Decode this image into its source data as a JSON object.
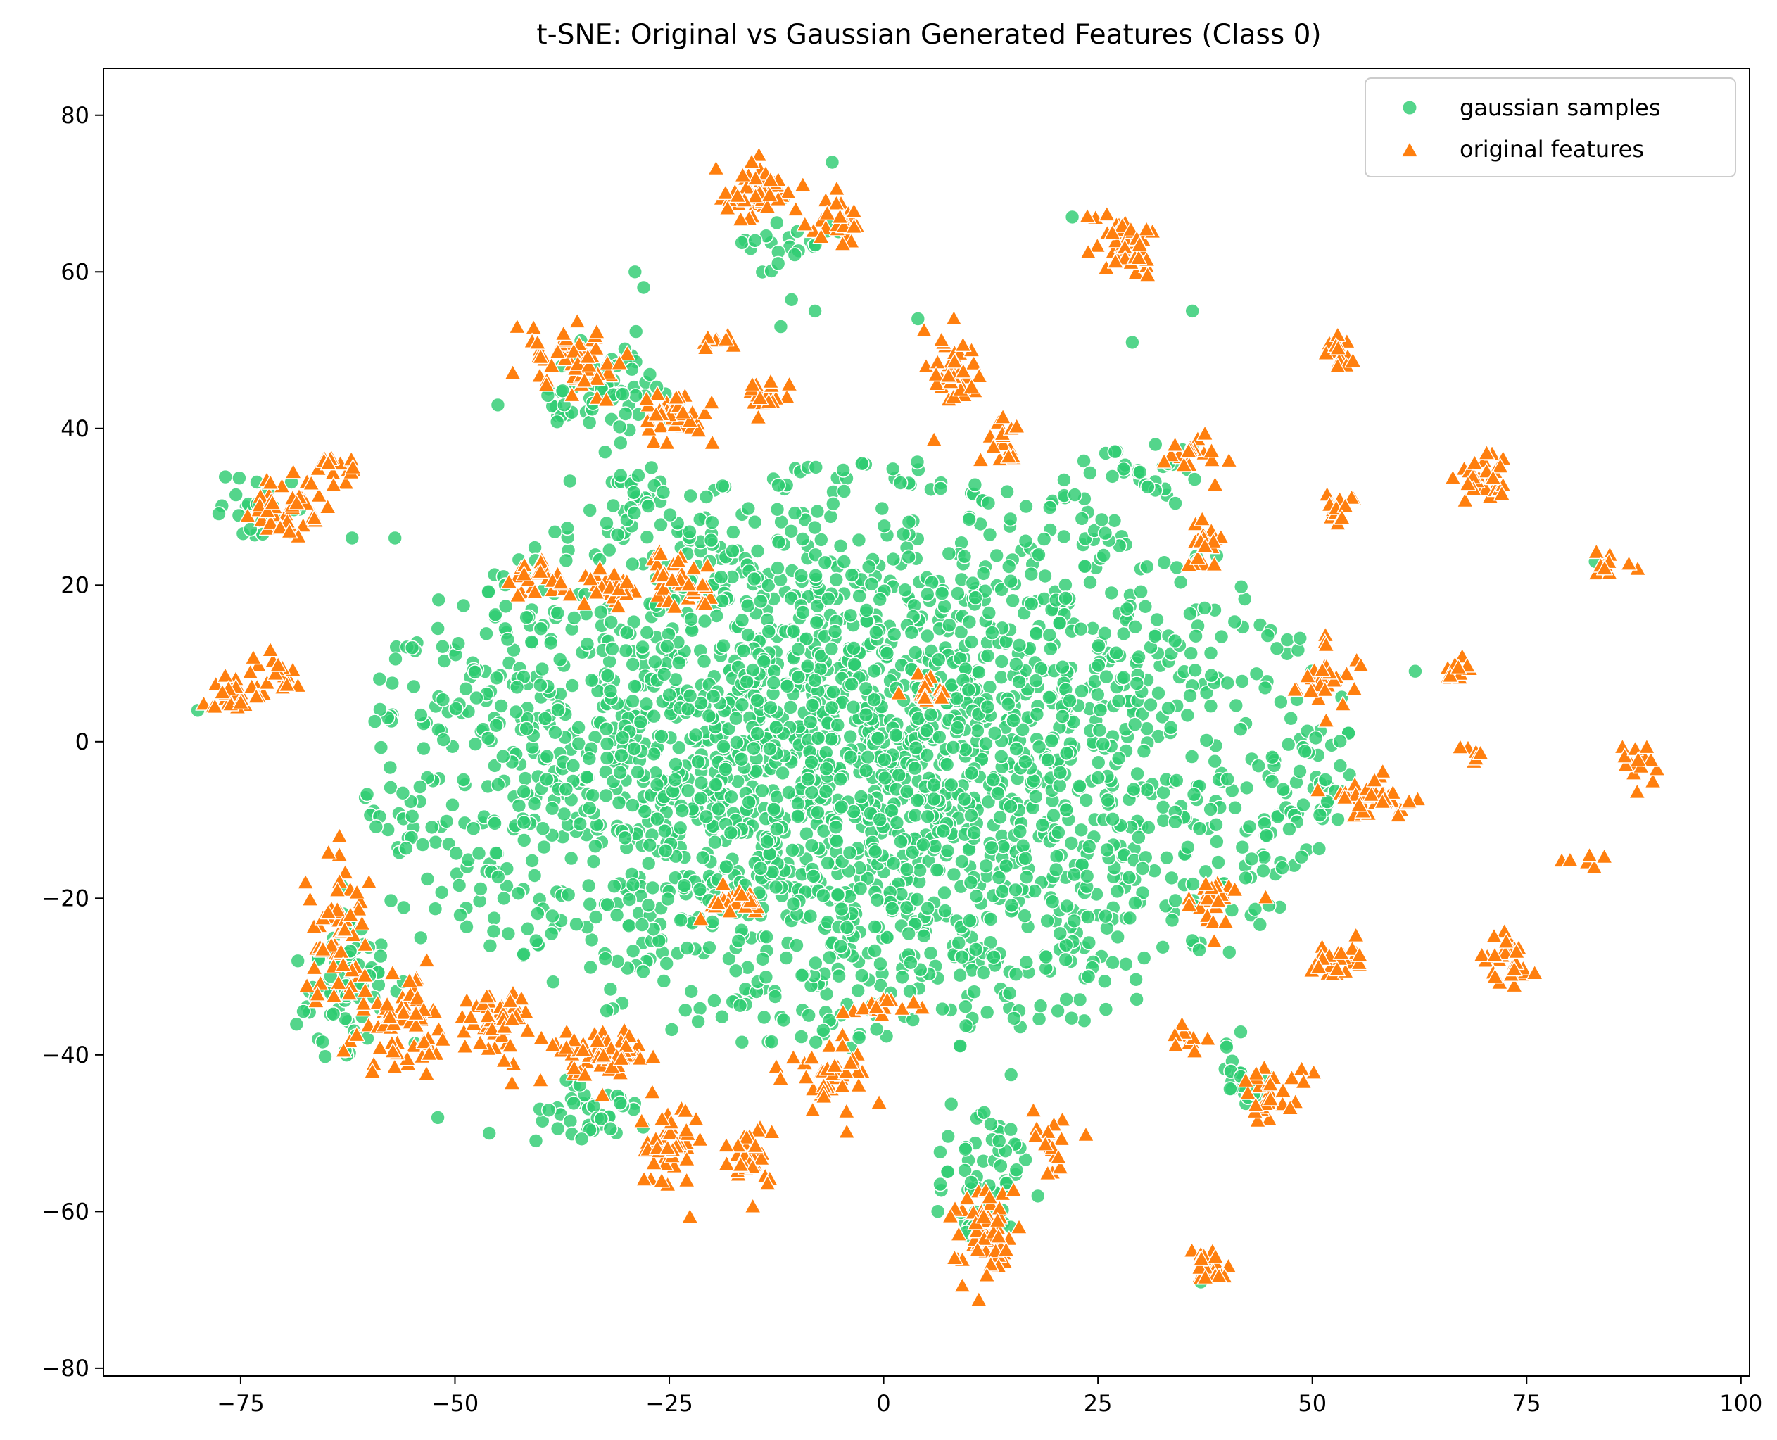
{
  "chart_data": {
    "type": "scatter",
    "title": "t-SNE: Original vs Gaussian Generated Features (Class 0)",
    "xlabel": "",
    "ylabel": "",
    "xlim": [
      -91,
      101
    ],
    "ylim": [
      -81,
      86
    ],
    "x_ticks": [
      -75,
      -50,
      -25,
      0,
      25,
      50,
      75,
      100
    ],
    "y_ticks": [
      -80,
      -60,
      -40,
      -20,
      0,
      20,
      40,
      60,
      80
    ],
    "x_tick_labels": [
      "−75",
      "−50",
      "−25",
      "0",
      "25",
      "50",
      "75",
      "100"
    ],
    "y_tick_labels": [
      "−80",
      "−60",
      "−40",
      "−20",
      "0",
      "20",
      "40",
      "60",
      "80"
    ],
    "grid": false,
    "legend_position": "top-right",
    "series": [
      {
        "name": "gaussian samples",
        "marker": "circle",
        "color": "#2ecc71",
        "distribution": {
          "main_cloud": {
            "center": [
              -3,
              -2
            ],
            "spread": [
              30,
              20
            ],
            "count": 2600
          },
          "blobs": [
            {
              "center": [
                -33,
                45
              ],
              "spread": [
                6,
                5
              ],
              "count": 70
            },
            {
              "center": [
                -30,
                32
              ],
              "spread": [
                5,
                4
              ],
              "count": 25
            },
            {
              "center": [
                -10,
                64
              ],
              "spread": [
                5,
                4
              ],
              "count": 25
            },
            {
              "center": [
                -72,
                30
              ],
              "spread": [
                5,
                4
              ],
              "count": 25
            },
            {
              "center": [
                -62,
                -30
              ],
              "spread": [
                5,
                8
              ],
              "count": 90
            },
            {
              "center": [
                12,
                -55
              ],
              "spread": [
                5,
                7
              ],
              "count": 60
            },
            {
              "center": [
                42,
                -43
              ],
              "spread": [
                3,
                3
              ],
              "count": 20
            },
            {
              "center": [
                30,
                35
              ],
              "spread": [
                6,
                4
              ],
              "count": 30
            },
            {
              "center": [
                50,
                -5
              ],
              "spread": [
                4,
                5
              ],
              "count": 25
            },
            {
              "center": [
                -34,
                -48
              ],
              "spread": [
                6,
                4
              ],
              "count": 40
            }
          ]
        },
        "points": [
          [
            22,
            67
          ],
          [
            -6,
            74
          ],
          [
            -29,
            60
          ],
          [
            -28,
            58
          ],
          [
            -12,
            53
          ],
          [
            4,
            54
          ],
          [
            29,
            51
          ],
          [
            -45,
            43
          ],
          [
            -57,
            26
          ],
          [
            -62,
            26
          ],
          [
            -80,
            4
          ],
          [
            -55,
            12
          ],
          [
            36,
            55
          ],
          [
            62,
            9
          ],
          [
            83,
            23
          ],
          [
            -8,
            55
          ],
          [
            -15,
            64
          ],
          [
            -20,
            28
          ],
          [
            -46,
            -50
          ],
          [
            -52,
            -48
          ],
          [
            37,
            -69
          ],
          [
            40,
            -39
          ]
        ]
      },
      {
        "name": "original features",
        "marker": "triangle",
        "color": "#ff7f0e",
        "clusters": [
          {
            "center": [
              -15,
              70
            ],
            "spread": [
              4,
              3
            ],
            "count": 45
          },
          {
            "center": [
              -5,
              66
            ],
            "spread": [
              2.5,
              3
            ],
            "count": 25
          },
          {
            "center": [
              -37,
              49
            ],
            "spread": [
              5,
              4
            ],
            "count": 60
          },
          {
            "center": [
              -25,
              42
            ],
            "spread": [
              4,
              3
            ],
            "count": 40
          },
          {
            "center": [
              -14,
              44
            ],
            "spread": [
              2.5,
              2
            ],
            "count": 20
          },
          {
            "center": [
              -20,
              51
            ],
            "spread": [
              1.5,
              1
            ],
            "count": 8
          },
          {
            "center": [
              -70,
              30
            ],
            "spread": [
              4,
              3
            ],
            "count": 45
          },
          {
            "center": [
              -64,
              35
            ],
            "spread": [
              2.5,
              2
            ],
            "count": 15
          },
          {
            "center": [
              -76,
              6
            ],
            "spread": [
              3,
              2
            ],
            "count": 30
          },
          {
            "center": [
              -71,
              9
            ],
            "spread": [
              2,
              2
            ],
            "count": 15
          },
          {
            "center": [
              -40,
              21
            ],
            "spread": [
              3,
              2
            ],
            "count": 25
          },
          {
            "center": [
              -32,
              20
            ],
            "spread": [
              3,
              2
            ],
            "count": 30
          },
          {
            "center": [
              -24,
              21
            ],
            "spread": [
              3,
              3
            ],
            "count": 35
          },
          {
            "center": [
              8,
              47
            ],
            "spread": [
              3,
              4
            ],
            "count": 40
          },
          {
            "center": [
              14,
              38
            ],
            "spread": [
              2,
              3
            ],
            "count": 18
          },
          {
            "center": [
              28,
              64
            ],
            "spread": [
              3,
              4
            ],
            "count": 45
          },
          {
            "center": [
              35,
              37
            ],
            "spread": [
              3,
              2
            ],
            "count": 20
          },
          {
            "center": [
              37,
              25
            ],
            "spread": [
              2,
              3
            ],
            "count": 20
          },
          {
            "center": [
              53,
              50
            ],
            "spread": [
              1.5,
              2
            ],
            "count": 15
          },
          {
            "center": [
              53,
              30
            ],
            "spread": [
              2,
              2
            ],
            "count": 18
          },
          {
            "center": [
              70,
              34
            ],
            "spread": [
              3,
              3
            ],
            "count": 30
          },
          {
            "center": [
              85,
              23
            ],
            "spread": [
              1.5,
              1.5
            ],
            "count": 10
          },
          {
            "center": [
              51,
              8
            ],
            "spread": [
              3,
              4
            ],
            "count": 30
          },
          {
            "center": [
              67,
              9
            ],
            "spread": [
              2,
              1.5
            ],
            "count": 12
          },
          {
            "center": [
              5,
              6
            ],
            "spread": [
              2,
              1.5
            ],
            "count": 15
          },
          {
            "center": [
              57,
              -7
            ],
            "spread": [
              4,
              2
            ],
            "count": 45
          },
          {
            "center": [
              88,
              -3
            ],
            "spread": [
              2,
              2
            ],
            "count": 15
          },
          {
            "center": [
              69,
              -2
            ],
            "spread": [
              1.5,
              1
            ],
            "count": 6
          },
          {
            "center": [
              82,
              -15
            ],
            "spread": [
              2,
              1
            ],
            "count": 6
          },
          {
            "center": [
              73,
              -28
            ],
            "spread": [
              2.5,
              2.5
            ],
            "count": 30
          },
          {
            "center": [
              53,
              -28
            ],
            "spread": [
              3,
              2
            ],
            "count": 25
          },
          {
            "center": [
              -64,
              -25
            ],
            "spread": [
              3,
              8
            ],
            "count": 60
          },
          {
            "center": [
              -56,
              -36
            ],
            "spread": [
              4,
              5
            ],
            "count": 70
          },
          {
            "center": [
              -45,
              -36
            ],
            "spread": [
              4,
              4
            ],
            "count": 50
          },
          {
            "center": [
              -33,
              -40
            ],
            "spread": [
              5,
              3
            ],
            "count": 55
          },
          {
            "center": [
              -25,
              -52
            ],
            "spread": [
              3,
              5
            ],
            "count": 45
          },
          {
            "center": [
              -15,
              -53
            ],
            "spread": [
              3,
              4
            ],
            "count": 35
          },
          {
            "center": [
              -6,
              -43
            ],
            "spread": [
              4,
              5
            ],
            "count": 40
          },
          {
            "center": [
              -18,
              -20
            ],
            "spread": [
              3,
              2
            ],
            "count": 25
          },
          {
            "center": [
              0,
              -34
            ],
            "spread": [
              4,
              1
            ],
            "count": 15
          },
          {
            "center": [
              12,
              -63
            ],
            "spread": [
              3,
              5
            ],
            "count": 60
          },
          {
            "center": [
              20,
              -52
            ],
            "spread": [
              2,
              3
            ],
            "count": 20
          },
          {
            "center": [
              38,
              -20
            ],
            "spread": [
              3,
              3
            ],
            "count": 25
          },
          {
            "center": [
              35,
              -38
            ],
            "spread": [
              1.5,
              2
            ],
            "count": 10
          },
          {
            "center": [
              45,
              -45
            ],
            "spread": [
              3,
              3
            ],
            "count": 30
          },
          {
            "center": [
              38,
              -67
            ],
            "spread": [
              2,
              2
            ],
            "count": 25
          }
        ]
      }
    ]
  }
}
